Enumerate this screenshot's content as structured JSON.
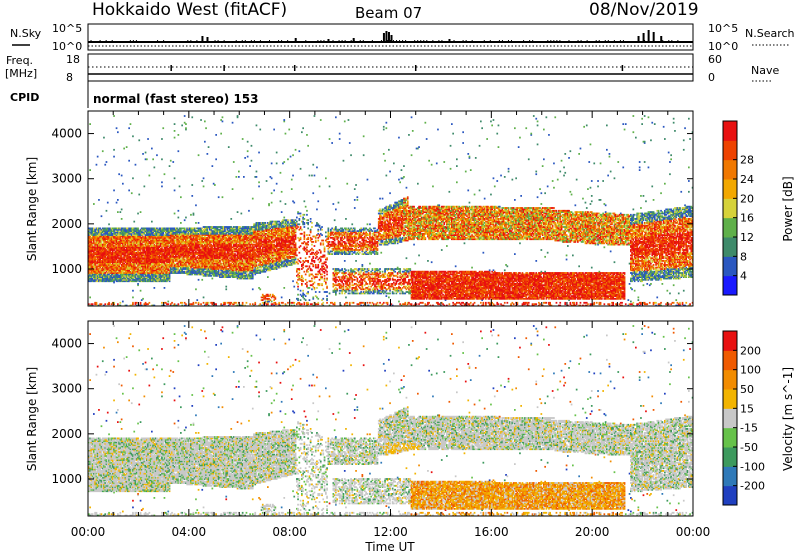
{
  "header": {
    "title": "Hokkaido West (fitACF)",
    "beam": "Beam 07",
    "date": "08/Nov/2019"
  },
  "top_panels": {
    "nsky_label": "N.Sky",
    "nsearch_label": "N.Search",
    "noise_tick_hi": "10^5",
    "noise_tick_lo": "10^0",
    "freq_label_1": "Freq.",
    "freq_label_2": "[MHz]",
    "freq_tick_hi": "18",
    "freq_tick_lo": "8",
    "nave_label": "Nave",
    "nave_tick_hi": "60",
    "nave_tick_lo": "0",
    "cpid_label": "CPID",
    "cpid_value": "normal (fast stereo) 153"
  },
  "chart_data": [
    {
      "type": "heatmap",
      "name": "power",
      "ylabel": "Slant Range [km]",
      "yticks": [
        "1000",
        "2000",
        "3000",
        "4000"
      ],
      "ylim": [
        180,
        4500
      ],
      "xlim_hours": [
        0,
        24
      ],
      "colorbar": {
        "label": "Power [dB]",
        "ticks": [
          "4",
          "8",
          "12",
          "16",
          "20",
          "24",
          "28"
        ],
        "colors": [
          "#1a1aff",
          "#2a57c0",
          "#3e8a6a",
          "#5fb04a",
          "#d6d23a",
          "#f2a800",
          "#f07800",
          "#ee4200",
          "#e81010"
        ]
      }
    },
    {
      "type": "heatmap",
      "name": "velocity",
      "ylabel": "Slant Range [km]",
      "yticks": [
        "1000",
        "2000",
        "3000",
        "4000"
      ],
      "ylim": [
        180,
        4500
      ],
      "xlabel": "Time UT",
      "xticks": [
        "00:00",
        "04:00",
        "08:00",
        "12:00",
        "16:00",
        "20:00",
        "00:00"
      ],
      "xlim_hours": [
        0,
        24
      ],
      "colorbar": {
        "label": "Velocity [m s^-1]",
        "ticks": [
          "200",
          "100",
          "50",
          "15",
          "-15",
          "-50",
          "-100",
          "-200"
        ],
        "colors": [
          "#2040c0",
          "#2f79b8",
          "#3d9a5e",
          "#66c24a",
          "#c8c8c8",
          "#f2b400",
          "#f28c00",
          "#ef5a00",
          "#e81010"
        ]
      }
    }
  ]
}
